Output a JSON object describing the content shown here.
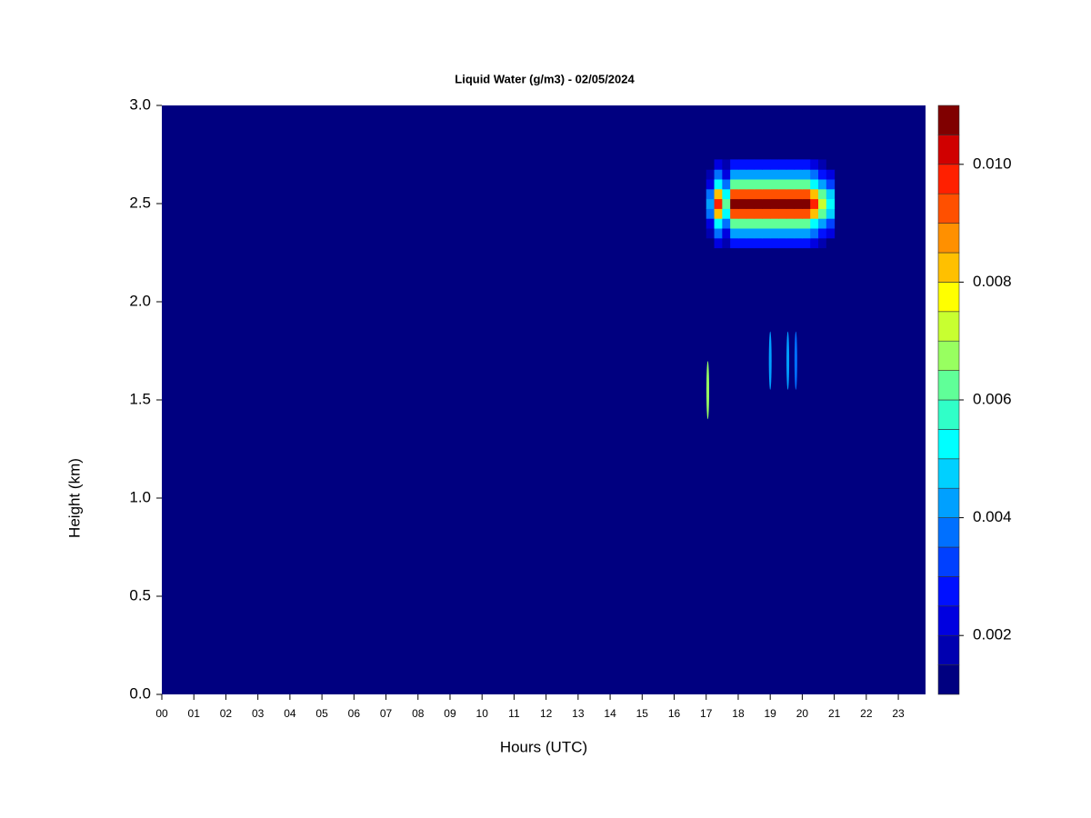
{
  "chart_data": {
    "type": "heatmap",
    "title": "Liquid Water (g/m3) - 02/05/2024",
    "x_label": "Hours (UTC)",
    "y_label": "Height (km)",
    "xlim": [
      0,
      23.85
    ],
    "ylim": [
      0,
      3
    ],
    "xticks": [
      {
        "value": 0,
        "label": "00"
      },
      {
        "value": 1,
        "label": "01"
      },
      {
        "value": 2,
        "label": "02"
      },
      {
        "value": 3,
        "label": "03"
      },
      {
        "value": 4,
        "label": "04"
      },
      {
        "value": 5,
        "label": "05"
      },
      {
        "value": 6,
        "label": "06"
      },
      {
        "value": 7,
        "label": "07"
      },
      {
        "value": 8,
        "label": "08"
      },
      {
        "value": 9,
        "label": "09"
      },
      10,
      11,
      12,
      13,
      14,
      15,
      16,
      17,
      18,
      19,
      20,
      21,
      22,
      23
    ],
    "yticks": [
      {
        "value": 0,
        "label": "0.0"
      },
      0.5,
      {
        "value": 1,
        "label": "1.0"
      },
      1.5,
      {
        "value": 2,
        "label": "2.0"
      },
      2.5,
      {
        "value": 3,
        "label": "3.0"
      }
    ],
    "levels": [
      0.001,
      0.0015,
      0.002,
      0.0025,
      0.003,
      0.0035,
      0.004,
      0.0045,
      0.005,
      0.0055,
      0.006,
      0.0065,
      0.007,
      0.0075,
      0.008,
      0.0085,
      0.009,
      0.0095,
      0.01,
      0.0105,
      0.011
    ],
    "colors": [
      "#000080",
      "#0000b0",
      "#0000e0",
      "#0010ff",
      "#0040ff",
      "#0070ff",
      "#00a0ff",
      "#00d0ff",
      "#00ffff",
      "#30ffc8",
      "#60ff98",
      "#98ff60",
      "#c8ff30",
      "#ffff00",
      "#ffc000",
      "#ff9000",
      "#ff5000",
      "#ff2000",
      "#d00000",
      "#800000"
    ],
    "colorbar_ticks": [
      0.002,
      0.004,
      0.006,
      0.008,
      {
        "value": 0.01,
        "label": "0.010"
      }
    ],
    "grid": {
      "x": [
        17.125,
        17.375,
        17.625,
        17.875,
        18.125,
        18.375,
        18.625,
        18.875,
        19.125,
        19.375,
        19.625,
        19.875,
        20.125,
        20.375,
        20.625,
        20.875
      ],
      "y": [
        2.3,
        2.35,
        2.4,
        2.45,
        2.5,
        2.55,
        2.6,
        2.65,
        2.7
      ],
      "z": [
        [
          0.001,
          0.0023,
          0.0015,
          0.0025,
          0.0025,
          0.0025,
          0.0025,
          0.0025,
          0.0025,
          0.0025,
          0.0025,
          0.0025,
          0.0025,
          0.0023,
          0.0018,
          0.0013
        ],
        [
          0.0016,
          0.0036,
          0.0024,
          0.004,
          0.004,
          0.004,
          0.004,
          0.004,
          0.004,
          0.004,
          0.004,
          0.004,
          0.004,
          0.0036,
          0.0028,
          0.002
        ],
        [
          0.0024,
          0.0054,
          0.0036,
          0.006,
          0.006,
          0.006,
          0.006,
          0.006,
          0.006,
          0.006,
          0.006,
          0.006,
          0.006,
          0.0054,
          0.0042,
          0.003
        ],
        [
          0.0036,
          0.0081,
          0.0054,
          0.009,
          0.009,
          0.009,
          0.009,
          0.009,
          0.009,
          0.009,
          0.009,
          0.009,
          0.009,
          0.0081,
          0.0063,
          0.0045
        ],
        [
          0.0042,
          0.0095,
          0.0063,
          0.0105,
          0.0105,
          0.0105,
          0.0105,
          0.0105,
          0.0105,
          0.0105,
          0.0105,
          0.0105,
          0.0105,
          0.0095,
          0.0074,
          0.0053
        ],
        [
          0.0036,
          0.0081,
          0.0054,
          0.009,
          0.009,
          0.009,
          0.009,
          0.009,
          0.009,
          0.009,
          0.009,
          0.009,
          0.009,
          0.0081,
          0.0063,
          0.0045
        ],
        [
          0.0024,
          0.0054,
          0.0036,
          0.006,
          0.006,
          0.006,
          0.006,
          0.006,
          0.006,
          0.006,
          0.006,
          0.006,
          0.006,
          0.0054,
          0.0042,
          0.003
        ],
        [
          0.0016,
          0.0036,
          0.0024,
          0.004,
          0.004,
          0.004,
          0.004,
          0.004,
          0.004,
          0.004,
          0.004,
          0.004,
          0.004,
          0.0036,
          0.0028,
          0.002
        ],
        [
          0.001,
          0.0023,
          0.0015,
          0.0025,
          0.0025,
          0.0025,
          0.0025,
          0.0025,
          0.0025,
          0.0025,
          0.0025,
          0.0025,
          0.0025,
          0.0023,
          0.0018,
          0.0013
        ]
      ]
    },
    "spots": {
      "x": [
        17.05,
        19.0,
        19.55,
        19.8
      ],
      "y": [
        1.55,
        1.7,
        1.7,
        1.7
      ],
      "values": [
        0.0068,
        0.004,
        0.004,
        0.0035
      ]
    }
  }
}
